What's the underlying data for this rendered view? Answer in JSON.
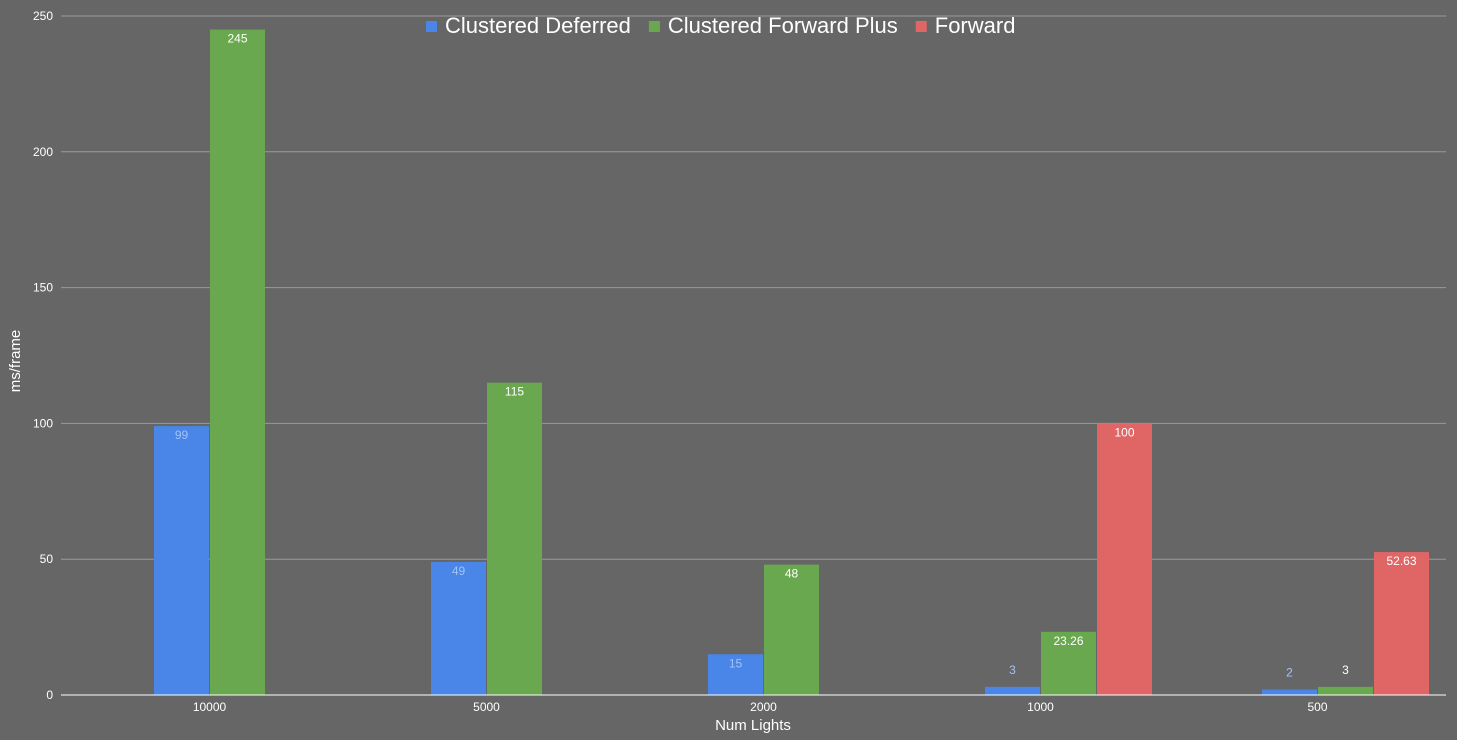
{
  "chart_data": {
    "type": "bar",
    "xlabel": "Num Lights",
    "ylabel": "ms/frame",
    "categories": [
      "10000",
      "5000",
      "2000",
      "1000",
      "500"
    ],
    "ylim": [
      0,
      250
    ],
    "yticks": [
      "0",
      "50",
      "100",
      "150",
      "200",
      "250"
    ],
    "grid": true,
    "legend_position": "top",
    "series": [
      {
        "name": "Clustered Deferred",
        "color": "#4a86e8",
        "label_color": "#a4c2f4",
        "values": [
          99,
          49,
          15,
          3,
          2
        ],
        "labels": [
          "99",
          "49",
          "15",
          "3",
          "2"
        ]
      },
      {
        "name": "Clustered Forward Plus",
        "color": "#6aa84f",
        "label_color": "#ffffff",
        "values": [
          245,
          115,
          48,
          23.26,
          3
        ],
        "labels": [
          "245",
          "115",
          "48",
          "23.26",
          "3"
        ]
      },
      {
        "name": "Forward",
        "color": "#e06666",
        "label_color": "#ffffff",
        "values": [
          null,
          null,
          null,
          100,
          52.63
        ],
        "labels": [
          "",
          "",
          "",
          "100",
          "52.63"
        ]
      }
    ]
  }
}
